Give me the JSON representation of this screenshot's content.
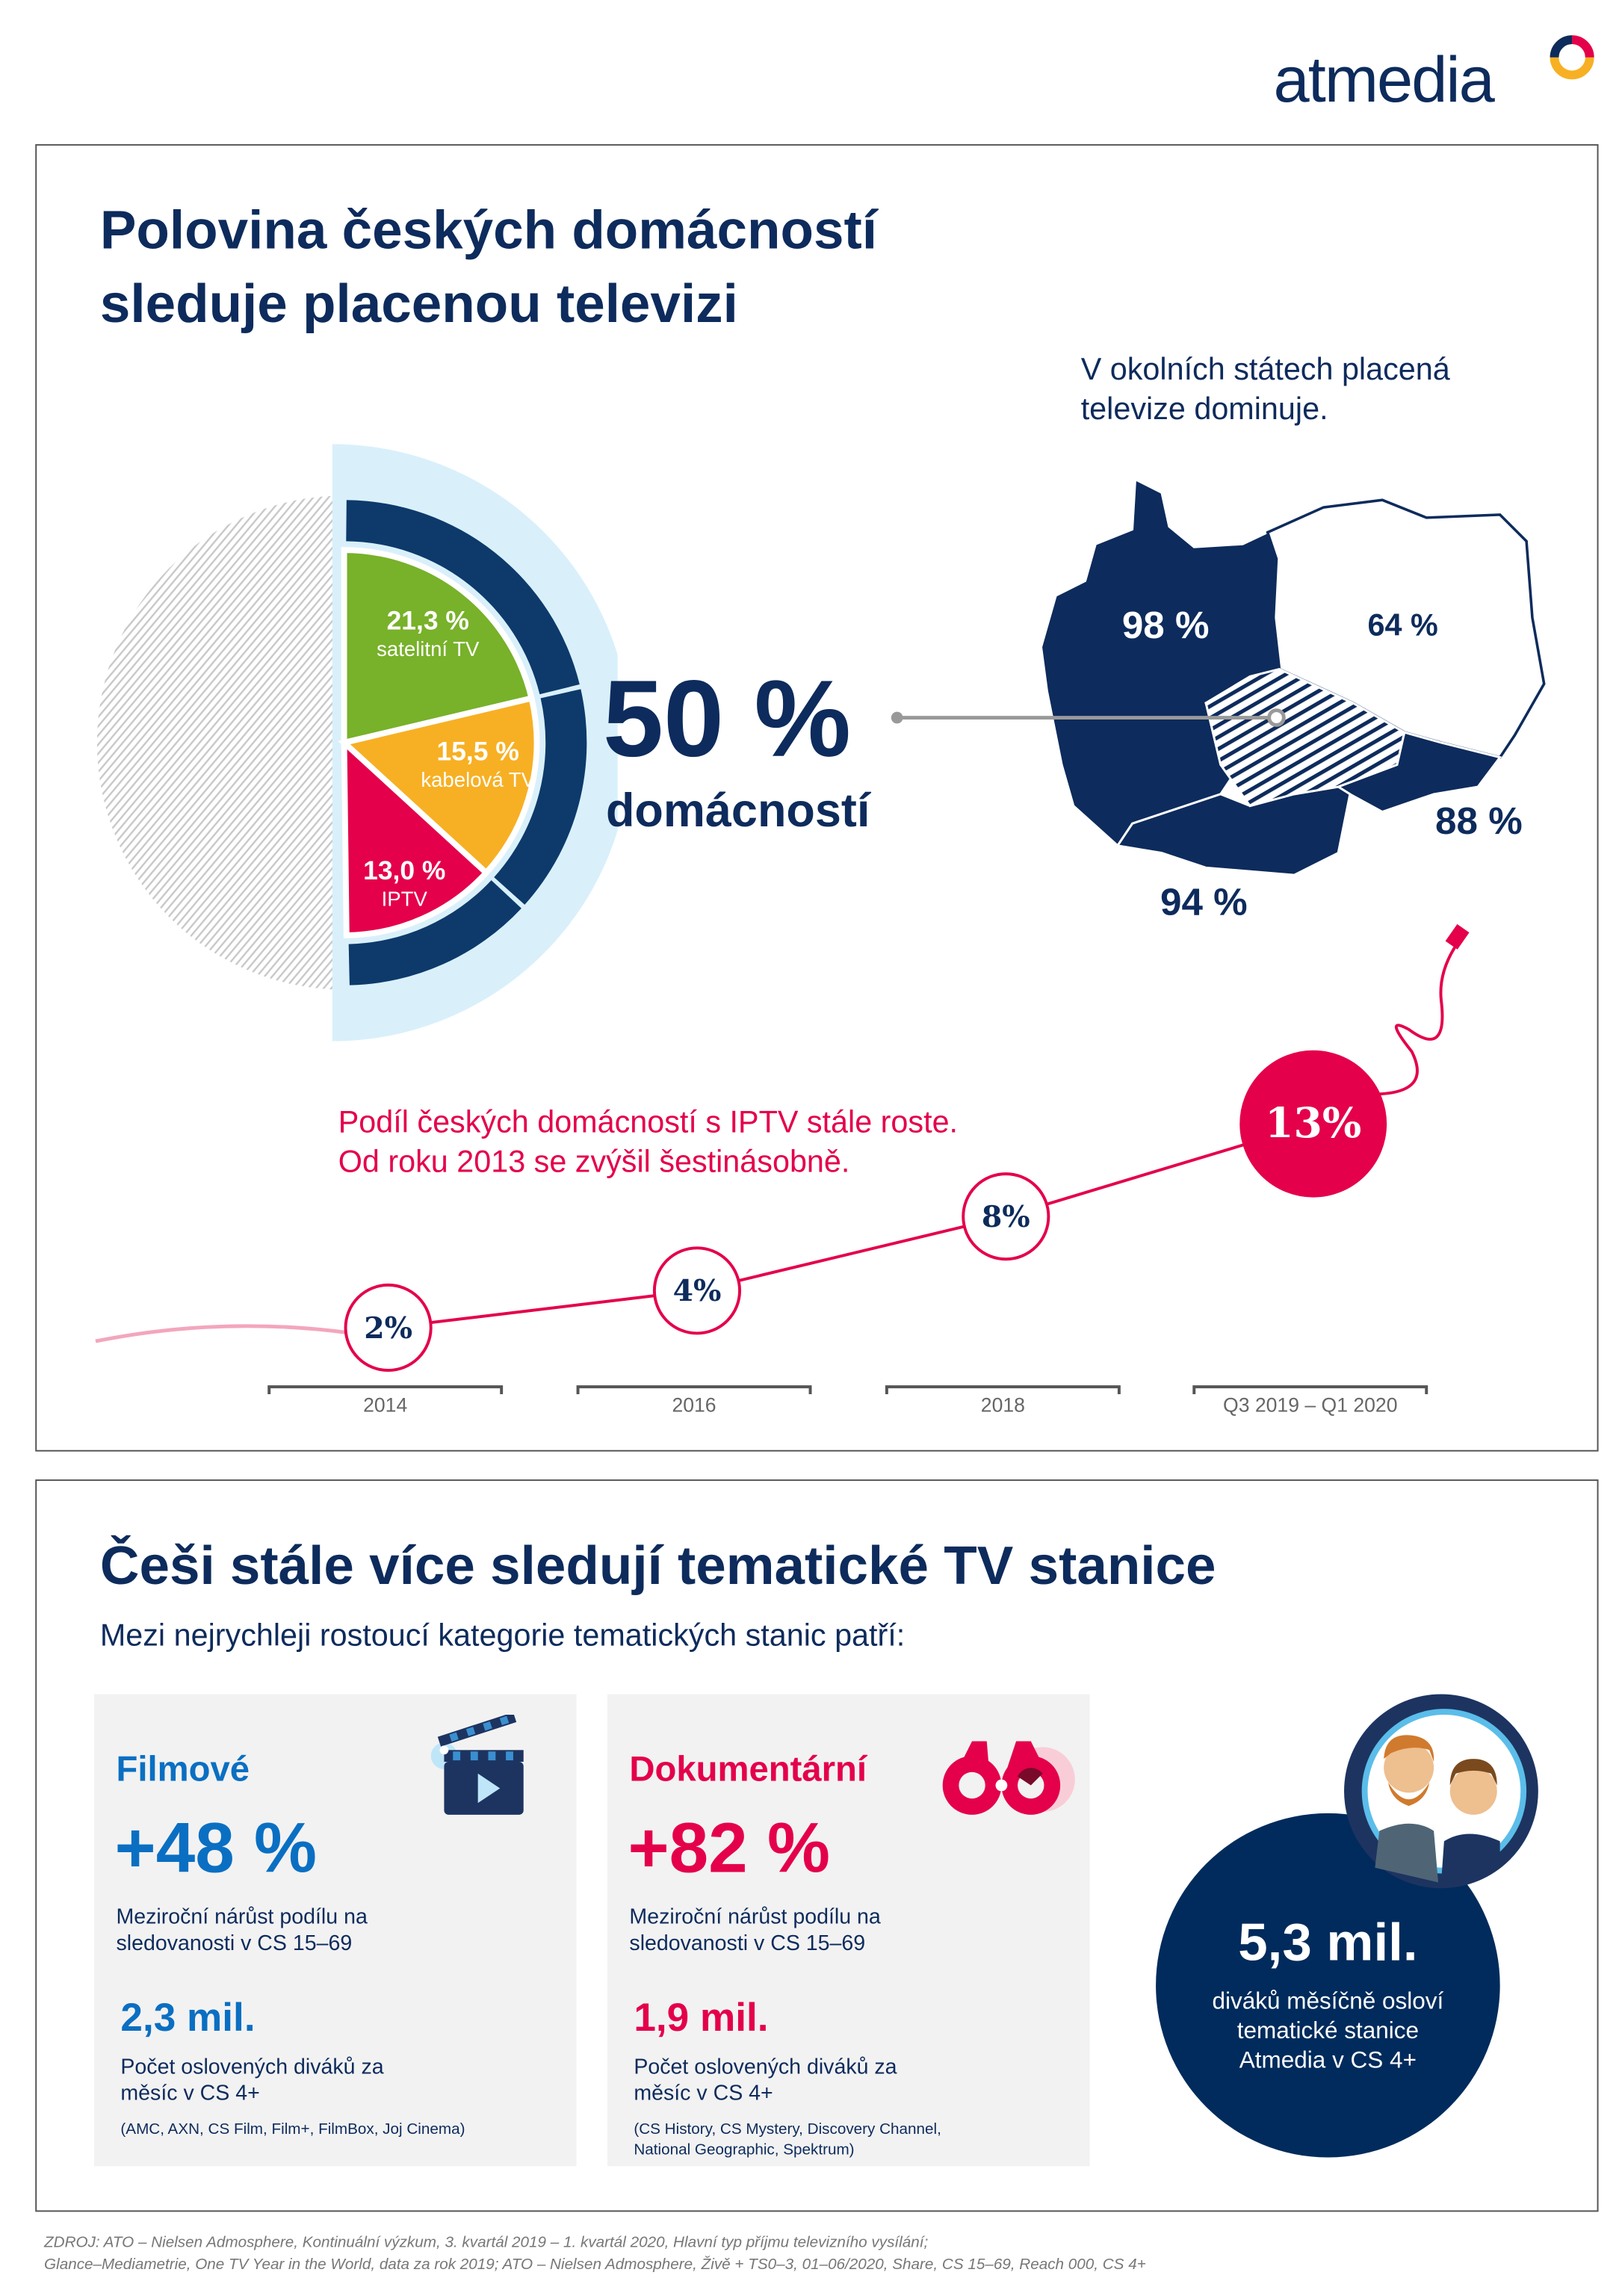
{
  "logo": {
    "text": "atmedia"
  },
  "colors": {
    "navy": "#0d2b5c",
    "red": "#e4004b",
    "green": "#78b12a",
    "orange": "#f7b024",
    "light_blue": "#d9f0fb",
    "blue": "#0a6fc2",
    "card_bg": "#f2f2f2"
  },
  "section1": {
    "title_line1": "Polovina českých domácností",
    "title_line2": "sleduje placenou televizi",
    "big_value": "50 %",
    "big_label": "domácností",
    "map_caption_line1": "V okolních státech placená",
    "map_caption_line2": "televize dominuje.",
    "map": [
      {
        "country": "Německo",
        "value": "98 %"
      },
      {
        "country": "Polsko",
        "value": "64 %"
      },
      {
        "country": "Slovensko",
        "value": "88 %"
      },
      {
        "country": "Rakousko",
        "value": "94 %"
      }
    ],
    "iptv_line1": "Podíl českých domácností s IPTV stále roste.",
    "iptv_line2": "Od roku 2013 se zvýšil šestinásobně."
  },
  "chart_data": [
    {
      "type": "pie",
      "values": [
        21.3,
        15.5,
        13.0
      ],
      "labels": [
        "21,3 %",
        "15,5 %",
        "13,0 %"
      ],
      "categories": [
        "satelitní TV",
        "kabelová TV",
        "IPTV"
      ],
      "colors": [
        "#78b12a",
        "#f7b024",
        "#e4004b"
      ]
    },
    {
      "type": "line",
      "categories": [
        "2014",
        "2016",
        "2018",
        "Q3 2019 – Q1 2020"
      ],
      "values": [
        2,
        4,
        8,
        13
      ],
      "labels": [
        "2%",
        "4%",
        "8%",
        "13%"
      ],
      "color": "#e4004b"
    }
  ],
  "section2": {
    "title": "Češi stále více sledují tematické TV stanice",
    "subtitle": "Mezi nejrychleji rostoucí kategorie tematických stanic patří:",
    "cards": [
      {
        "category": "Filmové",
        "growth": "+48 %",
        "desc_line1": "Meziroční nárůst podílu na",
        "desc_line2": "sledovanosti v CS 15–69",
        "reach": "2,3 mil.",
        "reach_line1": "Počet oslovených diváků za",
        "reach_line2": "měsíc v CS 4+",
        "channels": "(AMC, AXN, CS Film, Film+, FilmBox, Joj Cinema)",
        "icon": "clapperboard-icon"
      },
      {
        "category": "Dokumentární",
        "growth": "+82 %",
        "desc_line1": "Meziroční nárůst podílu na",
        "desc_line2": "sledovanosti v CS 15–69",
        "reach": "1,9 mil.",
        "reach_line1": "Počet oslovených diváků za",
        "reach_line2": "měsíc v CS 4+",
        "channels": "(CS History, CS Mystery, Discovery Channel, National Geographic, Spektrum)",
        "icon": "binoculars-icon"
      }
    ],
    "total": {
      "value": "5,3 mil.",
      "line1": "diváků měsíčně osloví",
      "line2": "tematické stanice",
      "line3": "Atmedia v CS 4+"
    }
  },
  "source": {
    "line1": "ZDROJ: ATO – Nielsen Admosphere, Kontinuální výzkum, 3. kvartál 2019 – 1. kvartál 2020, Hlavní typ příjmu televizního vysílání;",
    "line2": "Glance–Mediametrie, One TV Year in the World, data za rok 2019; ATO – Nielsen Admosphere, Živě + TS0–3, 01–06/2020, Share, CS 15–69, Reach 000, CS 4+"
  }
}
